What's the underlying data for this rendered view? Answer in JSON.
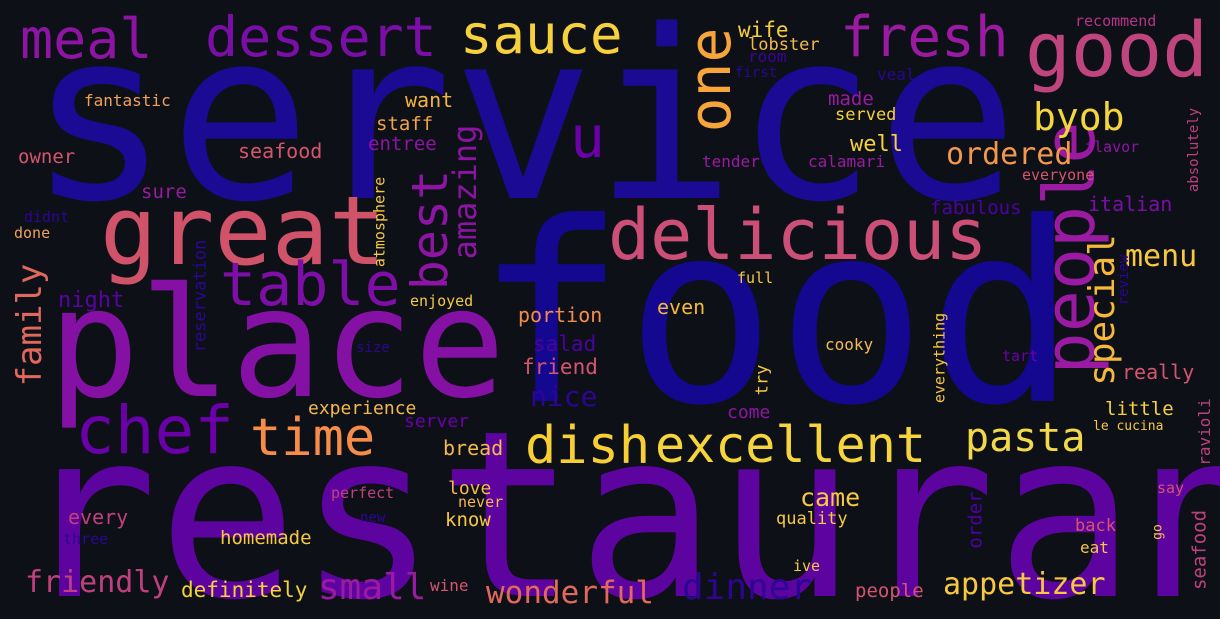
{
  "words": [
    {
      "text": "service",
      "color": "#1a0a94"
    },
    {
      "text": "food",
      "color": "#13088f"
    },
    {
      "text": "restaurant",
      "color": "#5d04a0"
    },
    {
      "text": "place",
      "color": "#8510a4"
    },
    {
      "text": "great",
      "color": "#d0536a"
    },
    {
      "text": "delicious",
      "color": "#cc4f77"
    },
    {
      "text": "people",
      "color": "#9b1aa2"
    },
    {
      "text": "meal",
      "color": "#8e15a3"
    },
    {
      "text": "dessert",
      "color": "#7a0ea6"
    },
    {
      "text": "sauce",
      "color": "#f6d13c"
    },
    {
      "text": "one",
      "color": "#f7a53a"
    },
    {
      "text": "fresh",
      "color": "#9b1aa2"
    },
    {
      "text": "good",
      "color": "#c0457f"
    },
    {
      "text": "u",
      "color": "#6a00a8"
    },
    {
      "text": "table",
      "color": "#7d0ea6"
    },
    {
      "text": "best",
      "color": "#8e15a3"
    },
    {
      "text": "amazing",
      "color": "#8c14a3"
    },
    {
      "text": "chef",
      "color": "#6a00a8"
    },
    {
      "text": "time",
      "color": "#f58c4a"
    },
    {
      "text": "dish",
      "color": "#f7cf34"
    },
    {
      "text": "excellent",
      "color": "#f5d43c"
    },
    {
      "text": "pasta",
      "color": "#f3d94a"
    },
    {
      "text": "byob",
      "color": "#f5d53c"
    },
    {
      "text": "ordered",
      "color": "#f4974a"
    },
    {
      "text": "special",
      "color": "#f5b83a"
    },
    {
      "text": "menu",
      "color": "#f7c840"
    },
    {
      "text": "family",
      "color": "#e0685c"
    },
    {
      "text": "night",
      "color": "#5a02a3"
    },
    {
      "text": "fantastic",
      "color": "#f0a15a"
    },
    {
      "text": "want",
      "color": "#f3b344"
    },
    {
      "text": "wife",
      "color": "#f7cf3c"
    },
    {
      "text": "lobster",
      "color": "#f5b94e"
    },
    {
      "text": "room",
      "color": "#3a049a"
    },
    {
      "text": "first",
      "color": "#2c0594"
    },
    {
      "text": "veal",
      "color": "#2b0594"
    },
    {
      "text": "recommend",
      "color": "#b83289"
    },
    {
      "text": "made",
      "color": "#9b1aa2"
    },
    {
      "text": "served",
      "color": "#f7d13c"
    },
    {
      "text": "staff",
      "color": "#f1a244"
    },
    {
      "text": "owner",
      "color": "#d5546e"
    },
    {
      "text": "seafood",
      "color": "#d5546e"
    },
    {
      "text": "entree",
      "color": "#8e15a3"
    },
    {
      "text": "well",
      "color": "#f7d13c"
    },
    {
      "text": "tender",
      "color": "#9b1aa2"
    },
    {
      "text": "calamari",
      "color": "#9b1aa2"
    },
    {
      "text": "flavor",
      "color": "#8e15a3"
    },
    {
      "text": "everyone",
      "color": "#d5546e"
    },
    {
      "text": "absolutely",
      "color": "#c0407f"
    },
    {
      "text": "sure",
      "color": "#9b1aa2"
    },
    {
      "text": "atmosphere",
      "color": "#f7c840"
    },
    {
      "text": "fabulous",
      "color": "#4c02a1"
    },
    {
      "text": "italian",
      "color": "#7a0ea6"
    },
    {
      "text": "didnt",
      "color": "#2c0594"
    },
    {
      "text": "done",
      "color": "#f0a15a"
    },
    {
      "text": "reservation",
      "color": "#2c0594"
    },
    {
      "text": "enjoyed",
      "color": "#f7c840"
    },
    {
      "text": "full",
      "color": "#f7c840"
    },
    {
      "text": "review",
      "color": "#2c0594"
    },
    {
      "text": "portion",
      "color": "#f58c4a"
    },
    {
      "text": "even",
      "color": "#f5b83a"
    },
    {
      "text": "salad",
      "color": "#4c02a1"
    },
    {
      "text": "friend",
      "color": "#d5546e"
    },
    {
      "text": "cooky",
      "color": "#f5b94e"
    },
    {
      "text": "size",
      "color": "#2c0594"
    },
    {
      "text": "tart",
      "color": "#6a00a8"
    },
    {
      "text": "really",
      "color": "#d5546e"
    },
    {
      "text": "nice",
      "color": "#2c0594"
    },
    {
      "text": "try",
      "color": "#f7c840"
    },
    {
      "text": "everything",
      "color": "#f7c840"
    },
    {
      "text": "experience",
      "color": "#f5b94e"
    },
    {
      "text": "come",
      "color": "#8e15a3"
    },
    {
      "text": "little",
      "color": "#f7d13c"
    },
    {
      "text": "ravioli",
      "color": "#c0407f"
    },
    {
      "text": "server",
      "color": "#6a00a8"
    },
    {
      "text": "le cucina",
      "color": "#f7c840"
    },
    {
      "text": "bread",
      "color": "#f5b94e"
    },
    {
      "text": "came",
      "color": "#f7c840"
    },
    {
      "text": "love",
      "color": "#f5b94e"
    },
    {
      "text": "never",
      "color": "#f5b94e"
    },
    {
      "text": "perfect",
      "color": "#c0407f"
    },
    {
      "text": "every",
      "color": "#c0407f"
    },
    {
      "text": "know",
      "color": "#f7c840"
    },
    {
      "text": "new",
      "color": "#2c0594"
    },
    {
      "text": "quality",
      "color": "#f7c840"
    },
    {
      "text": "order",
      "color": "#4c02a1"
    },
    {
      "text": "say",
      "color": "#d5546e"
    },
    {
      "text": "seafood",
      "color": "#c0407f"
    },
    {
      "text": "three",
      "color": "#2c0594"
    },
    {
      "text": "homemade",
      "color": "#f7c840"
    },
    {
      "text": "back",
      "color": "#d5546e"
    },
    {
      "text": "go",
      "color": "#f7c840"
    },
    {
      "text": "eat",
      "color": "#f7c840"
    },
    {
      "text": "friendly",
      "color": "#c0407f"
    },
    {
      "text": "definitely",
      "color": "#f7d13c"
    },
    {
      "text": "small",
      "color": "#9b1aa2"
    },
    {
      "text": "wine",
      "color": "#d5546e"
    },
    {
      "text": "wonderful",
      "color": "#e0685c"
    },
    {
      "text": "dinner",
      "color": "#2c0594"
    },
    {
      "text": "ive",
      "color": "#f7c840"
    },
    {
      "text": "people",
      "color": "#d5546e"
    },
    {
      "text": "appetizer",
      "color": "#f7c840"
    }
  ]
}
